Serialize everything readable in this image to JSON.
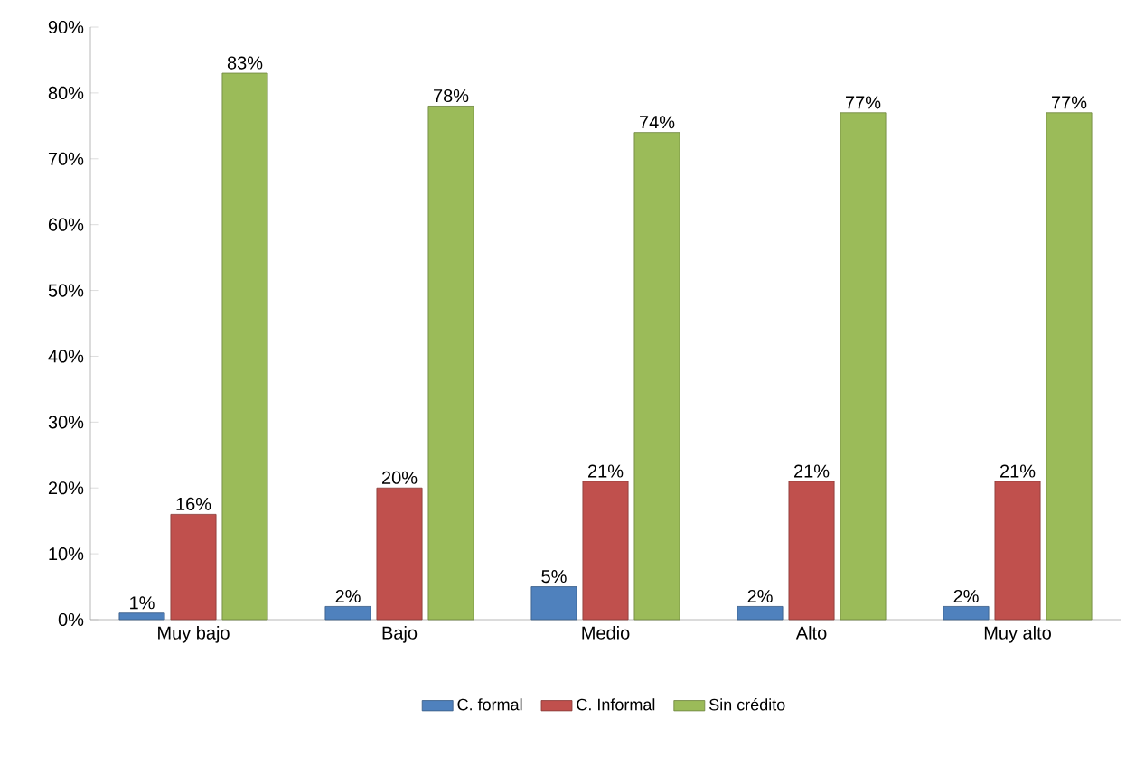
{
  "chart_data": {
    "type": "bar",
    "categories": [
      "Muy bajo",
      "Bajo",
      "Medio",
      "Alto",
      "Muy alto"
    ],
    "series": [
      {
        "name": "C. formal",
        "color": "#4f81bd",
        "values": [
          1,
          2,
          5,
          2,
          2
        ],
        "value_labels": [
          "1%",
          "2%",
          "5%",
          "2%",
          "2%"
        ]
      },
      {
        "name": "C. Informal",
        "color": "#c0504d",
        "values": [
          16,
          20,
          21,
          21,
          21
        ],
        "value_labels": [
          "16%",
          "20%",
          "21%",
          "21%",
          "21%"
        ]
      },
      {
        "name": "Sin crédito",
        "color": "#9bbb59",
        "values": [
          83,
          78,
          74,
          77,
          77
        ],
        "value_labels": [
          "83%",
          "78%",
          "74%",
          "77%",
          "77%"
        ]
      }
    ],
    "ylim": [
      0,
      90
    ],
    "yticks": [
      {
        "value": 0,
        "label": "0%"
      },
      {
        "value": 10,
        "label": "10%"
      },
      {
        "value": 20,
        "label": "20%"
      },
      {
        "value": 30,
        "label": "30%"
      },
      {
        "value": 40,
        "label": "40%"
      },
      {
        "value": 50,
        "label": "50%"
      },
      {
        "value": 60,
        "label": "60%"
      },
      {
        "value": 70,
        "label": "70%"
      },
      {
        "value": 80,
        "label": "80%"
      },
      {
        "value": 90,
        "label": "90%"
      }
    ],
    "grid": false,
    "legend": "bottom"
  }
}
